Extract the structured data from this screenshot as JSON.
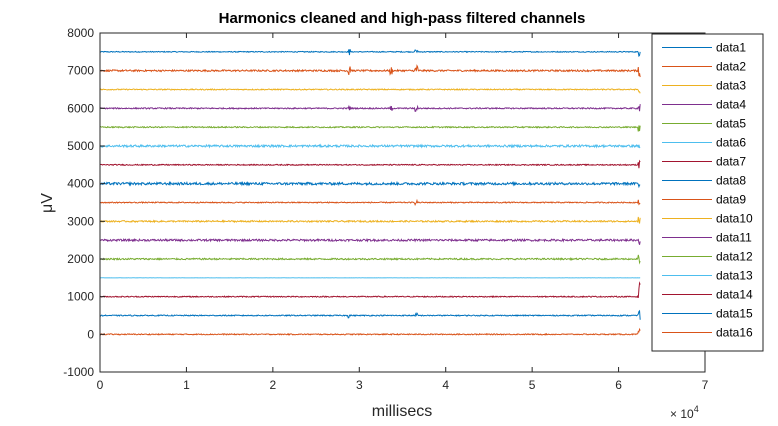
{
  "chart_data": {
    "type": "line",
    "title": "Harmonics cleaned and high-pass filtered channels",
    "xlabel": "millisecs",
    "ylabel": "μV",
    "x_exponent_label": "× 10",
    "x_exponent_power": "4",
    "xlim": [
      0,
      70000
    ],
    "ylim": [
      -1000,
      8000
    ],
    "x_tick_values": [
      0,
      10000,
      20000,
      30000,
      40000,
      50000,
      60000,
      70000
    ],
    "x_tick_labels": [
      "0",
      "1",
      "2",
      "3",
      "4",
      "5",
      "6",
      "7"
    ],
    "y_tick_values": [
      -1000,
      0,
      1000,
      2000,
      3000,
      4000,
      5000,
      6000,
      7000,
      8000
    ],
    "y_tick_labels": [
      "-1000",
      "0",
      "1000",
      "2000",
      "3000",
      "4000",
      "5000",
      "6000",
      "7000",
      "8000"
    ],
    "x_range": [
      0,
      62500
    ],
    "grid": false,
    "legend_position": "right",
    "series": [
      {
        "name": "data1",
        "offset": 7500,
        "noise": 12,
        "color": "#0072BD",
        "spikes": [
          [
            28800,
            90
          ],
          [
            36600,
            60
          ],
          [
            62400,
            130
          ]
        ]
      },
      {
        "name": "data2",
        "offset": 7000,
        "noise": 22,
        "color": "#D95319",
        "spikes": [
          [
            28800,
            180
          ],
          [
            33700,
            120
          ],
          [
            36600,
            170
          ],
          [
            62400,
            220
          ]
        ]
      },
      {
        "name": "data3",
        "offset": 6500,
        "noise": 14,
        "color": "#EDB120",
        "spikes": [
          [
            62400,
            120
          ]
        ]
      },
      {
        "name": "data4",
        "offset": 6000,
        "noise": 16,
        "color": "#7E2F8E",
        "spikes": [
          [
            28800,
            110
          ],
          [
            33700,
            80
          ],
          [
            36600,
            130
          ],
          [
            62400,
            140
          ]
        ]
      },
      {
        "name": "data5",
        "offset": 5500,
        "noise": 16,
        "color": "#77AC30",
        "spikes": [
          [
            62400,
            120
          ]
        ]
      },
      {
        "name": "data6",
        "offset": 5000,
        "noise": 28,
        "color": "#4DBEEE",
        "spikes": [
          [
            62400,
            140
          ]
        ]
      },
      {
        "name": "data7",
        "offset": 4500,
        "noise": 14,
        "color": "#A2142F",
        "spikes": [
          [
            62400,
            110
          ]
        ]
      },
      {
        "name": "data8",
        "offset": 4000,
        "noise": 32,
        "color": "#0072BD",
        "spikes": [
          [
            62400,
            160
          ]
        ]
      },
      {
        "name": "data9",
        "offset": 3500,
        "noise": 14,
        "color": "#D95319",
        "spikes": [
          [
            36600,
            50
          ],
          [
            62400,
            110
          ]
        ]
      },
      {
        "name": "data10",
        "offset": 3000,
        "noise": 20,
        "color": "#EDB120",
        "spikes": [
          [
            62400,
            130
          ]
        ]
      },
      {
        "name": "data11",
        "offset": 2500,
        "noise": 26,
        "color": "#7E2F8E",
        "spikes": [
          [
            62400,
            140
          ]
        ]
      },
      {
        "name": "data12",
        "offset": 2000,
        "noise": 20,
        "color": "#77AC30",
        "spikes": [
          [
            62400,
            120
          ]
        ]
      },
      {
        "name": "data13",
        "offset": 1500,
        "noise": 2,
        "color": "#4DBEEE",
        "spikes": []
      },
      {
        "name": "data14",
        "offset": 1000,
        "noise": 14,
        "color": "#A2142F",
        "spikes": [
          [
            62400,
            380
          ]
        ]
      },
      {
        "name": "data15",
        "offset": 500,
        "noise": 14,
        "color": "#0072BD",
        "spikes": [
          [
            28800,
            60
          ],
          [
            36600,
            60
          ],
          [
            62400,
            140
          ]
        ]
      },
      {
        "name": "data16",
        "offset": 0,
        "noise": 14,
        "color": "#D95319",
        "spikes": [
          [
            62400,
            130
          ]
        ]
      }
    ]
  }
}
